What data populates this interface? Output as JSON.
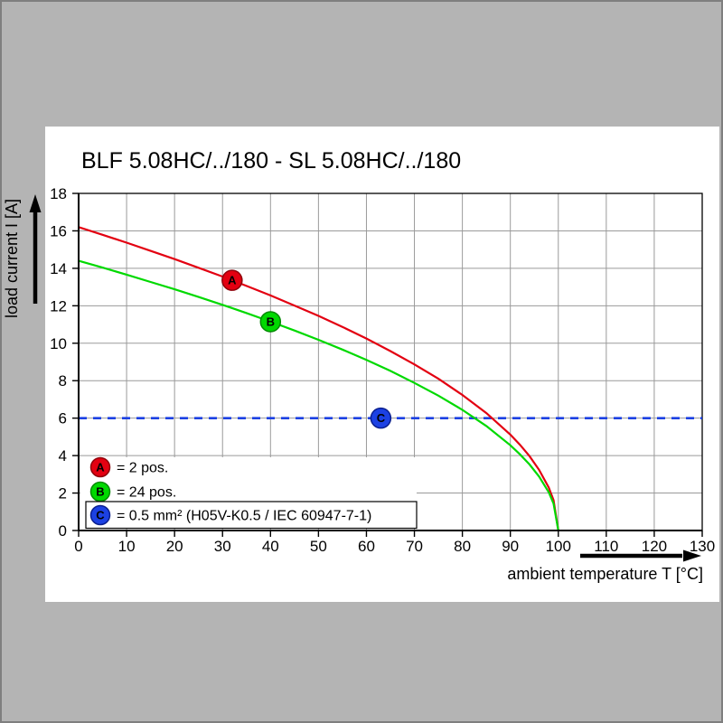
{
  "page": {
    "background": "#b4b4b4",
    "panel_background": "#ffffff"
  },
  "chart_data": {
    "type": "line",
    "title": "BLF 5.08HC/../180 - SL 5.08HC/../180",
    "xlabel": "ambient temperature T [°C]",
    "ylabel": "load current I [A]",
    "xlim": [
      0,
      130
    ],
    "ylim": [
      0,
      18
    ],
    "xticks": [
      0,
      10,
      20,
      30,
      40,
      50,
      60,
      70,
      80,
      90,
      100,
      110,
      120,
      130
    ],
    "yticks": [
      0,
      2,
      4,
      6,
      8,
      10,
      12,
      14,
      16,
      18
    ],
    "grid": true,
    "grid_color": "#9a9a9a",
    "frame_color": "#000000",
    "series": [
      {
        "id": "A",
        "label": "2 pos.",
        "color": "#e30011",
        "edge": "#8f000a",
        "style": "solid",
        "marker_at": [
          32,
          13.36
        ],
        "points": [
          [
            0,
            16.2
          ],
          [
            5,
            15.79
          ],
          [
            10,
            15.37
          ],
          [
            15,
            14.93
          ],
          [
            20,
            14.49
          ],
          [
            25,
            14.03
          ],
          [
            30,
            13.56
          ],
          [
            35,
            13.06
          ],
          [
            40,
            12.55
          ],
          [
            45,
            12.01
          ],
          [
            50,
            11.46
          ],
          [
            55,
            10.87
          ],
          [
            60,
            10.25
          ],
          [
            65,
            9.58
          ],
          [
            70,
            8.87
          ],
          [
            75,
            8.1
          ],
          [
            80,
            7.24
          ],
          [
            85,
            6.27
          ],
          [
            90,
            5.12
          ],
          [
            92,
            4.58
          ],
          [
            94,
            3.97
          ],
          [
            96,
            3.24
          ],
          [
            98,
            2.29
          ],
          [
            99,
            1.62
          ],
          [
            100,
            0
          ]
        ]
      },
      {
        "id": "B",
        "label": "24 pos.",
        "color": "#00d900",
        "edge": "#008a00",
        "style": "solid",
        "marker_at": [
          40,
          11.15
        ],
        "points": [
          [
            0,
            14.4
          ],
          [
            5,
            14.04
          ],
          [
            10,
            13.66
          ],
          [
            15,
            13.27
          ],
          [
            20,
            12.88
          ],
          [
            25,
            12.47
          ],
          [
            30,
            12.05
          ],
          [
            35,
            11.61
          ],
          [
            40,
            11.15
          ],
          [
            45,
            10.68
          ],
          [
            50,
            10.18
          ],
          [
            55,
            9.66
          ],
          [
            60,
            9.11
          ],
          [
            65,
            8.52
          ],
          [
            70,
            7.88
          ],
          [
            75,
            7.2
          ],
          [
            80,
            6.44
          ],
          [
            85,
            5.58
          ],
          [
            90,
            4.55
          ],
          [
            92,
            4.07
          ],
          [
            94,
            3.53
          ],
          [
            96,
            2.88
          ],
          [
            98,
            2.04
          ],
          [
            99,
            1.44
          ],
          [
            100,
            0
          ]
        ]
      },
      {
        "id": "C",
        "label": "0.5 mm² (H05V-K0.5 / IEC 60947-7-1)",
        "color": "#1c41e3",
        "edge": "#0a1f8f",
        "style": "dashed",
        "threshold": 6,
        "marker_at": [
          63,
          6
        ],
        "points": [
          [
            0,
            6
          ],
          [
            130,
            6
          ]
        ]
      }
    ],
    "legend": {
      "position": "bottom-left",
      "entries": [
        {
          "id": "A",
          "text": "= 2 pos."
        },
        {
          "id": "B",
          "text": "= 24 pos."
        },
        {
          "id": "C",
          "text": "= 0.5 mm² (H05V-K0.5 / IEC 60947-7-1)",
          "boxed": true
        }
      ]
    }
  }
}
